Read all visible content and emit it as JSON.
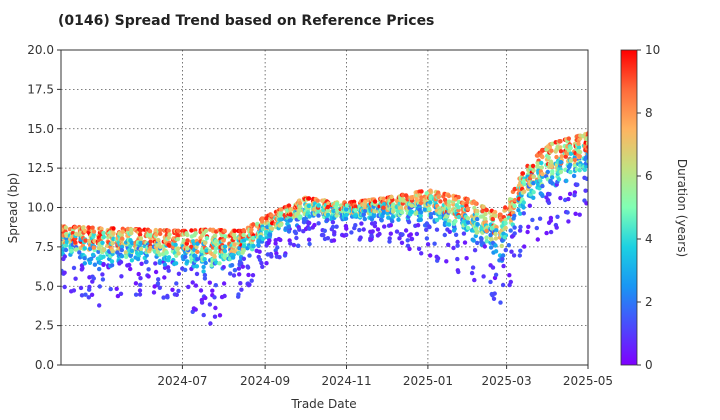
{
  "chart_data": {
    "type": "scatter",
    "title": "(0146)   Spread Trend based on Reference Prices",
    "xlabel": "Trade Date",
    "ylabel": "Spread (bp)",
    "x_range": [
      "2024-04-01",
      "2025-05-01"
    ],
    "ylim": [
      0,
      20
    ],
    "x_ticks": [
      "2024-07",
      "2024-09",
      "2024-11",
      "2025-01",
      "2025-03",
      "2025-05"
    ],
    "y_ticks": [
      "0.0",
      "2.5",
      "5.0",
      "7.5",
      "10.0",
      "12.5",
      "15.0",
      "17.5",
      "20.0"
    ],
    "grid": true,
    "colorbar": {
      "label": "Duration (years)",
      "min": 0,
      "max": 10,
      "ticks": [
        "0",
        "2",
        "4",
        "6",
        "8",
        "10"
      ],
      "colormap": "rainbow"
    },
    "series_summary": [
      {
        "date": "2024-04-01",
        "spread_range": [
          5.0,
          8.8
        ]
      },
      {
        "date": "2024-05-01",
        "spread_range": [
          3.6,
          8.7
        ]
      },
      {
        "date": "2024-06-01",
        "spread_range": [
          4.4,
          8.6
        ]
      },
      {
        "date": "2024-07-01",
        "spread_range": [
          4.0,
          8.5
        ]
      },
      {
        "date": "2024-07-20",
        "spread_range": [
          2.4,
          8.6
        ]
      },
      {
        "date": "2024-08-15",
        "spread_range": [
          4.5,
          8.5
        ]
      },
      {
        "date": "2024-09-01",
        "spread_range": [
          6.3,
          9.4
        ]
      },
      {
        "date": "2024-10-01",
        "spread_range": [
          7.6,
          10.6
        ]
      },
      {
        "date": "2024-11-01",
        "spread_range": [
          8.0,
          10.3
        ]
      },
      {
        "date": "2024-12-01",
        "spread_range": [
          7.8,
          10.6
        ]
      },
      {
        "date": "2025-01-01",
        "spread_range": [
          6.9,
          11.1
        ]
      },
      {
        "date": "2025-02-01",
        "spread_range": [
          5.5,
          10.5
        ]
      },
      {
        "date": "2025-02-25",
        "spread_range": [
          3.7,
          9.5
        ]
      },
      {
        "date": "2025-03-15",
        "spread_range": [
          7.5,
          12.5
        ]
      },
      {
        "date": "2025-04-01",
        "spread_range": [
          8.0,
          14.0
        ]
      },
      {
        "date": "2025-05-01",
        "spread_range": [
          9.5,
          14.7
        ]
      }
    ]
  }
}
